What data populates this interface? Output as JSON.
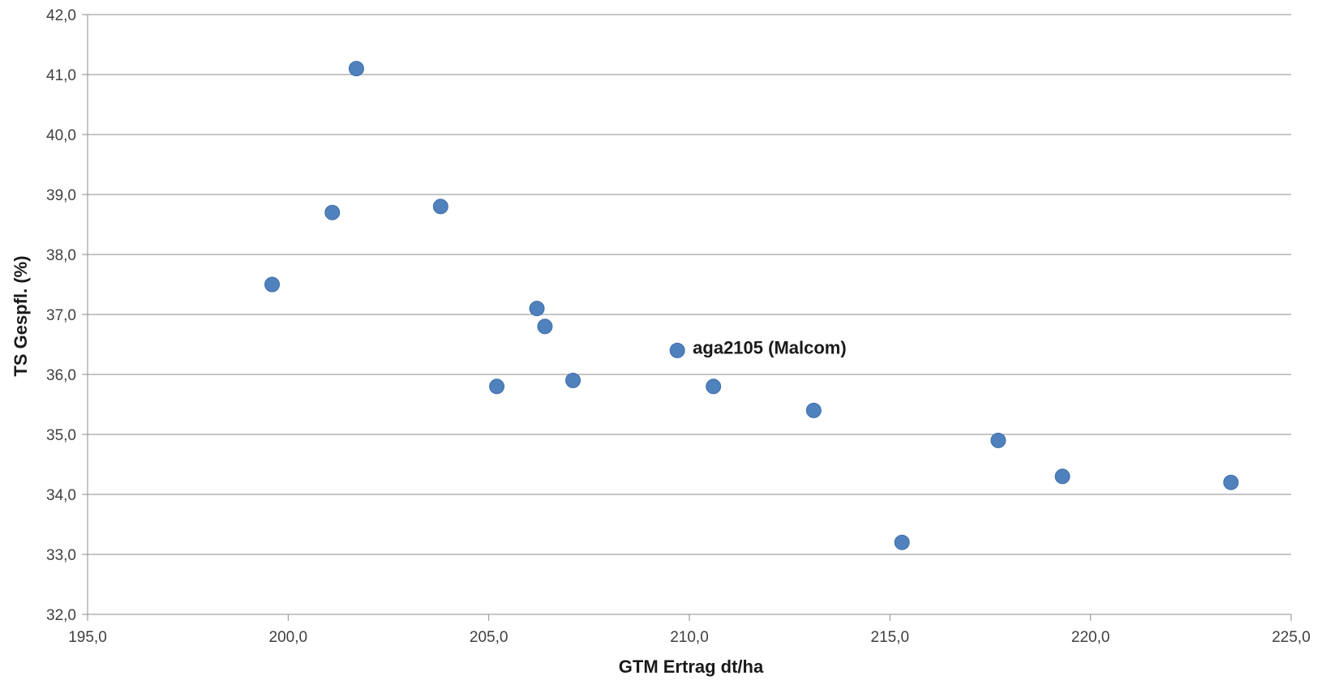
{
  "chart_data": {
    "type": "scatter",
    "title": "",
    "xlabel": "GTM Ertrag dt/ha",
    "ylabel": "TS Gespfl. (%)",
    "xlim": [
      195,
      225
    ],
    "ylim": [
      32,
      42
    ],
    "x_ticks": [
      "195,0",
      "200,0",
      "205,0",
      "210,0",
      "215,0",
      "220,0",
      "225,0"
    ],
    "y_ticks": [
      "32,0",
      "33,0",
      "34,0",
      "35,0",
      "36,0",
      "37,0",
      "38,0",
      "39,0",
      "40,0",
      "41,0",
      "42,0"
    ],
    "grid": "horizontal",
    "legend": "none",
    "marker_color": "#4F81BD",
    "points": [
      {
        "x": 201.7,
        "y": 41.1
      },
      {
        "x": 201.1,
        "y": 38.7
      },
      {
        "x": 203.8,
        "y": 38.8
      },
      {
        "x": 199.6,
        "y": 37.5
      },
      {
        "x": 206.2,
        "y": 37.1
      },
      {
        "x": 206.4,
        "y": 36.8
      },
      {
        "x": 205.2,
        "y": 35.8
      },
      {
        "x": 207.1,
        "y": 35.9
      },
      {
        "x": 209.7,
        "y": 36.4,
        "label": "aga2105 (Malcom)"
      },
      {
        "x": 210.6,
        "y": 35.8
      },
      {
        "x": 213.1,
        "y": 35.4
      },
      {
        "x": 217.7,
        "y": 34.9
      },
      {
        "x": 219.3,
        "y": 34.3
      },
      {
        "x": 223.5,
        "y": 34.2
      },
      {
        "x": 215.3,
        "y": 33.2
      }
    ]
  }
}
